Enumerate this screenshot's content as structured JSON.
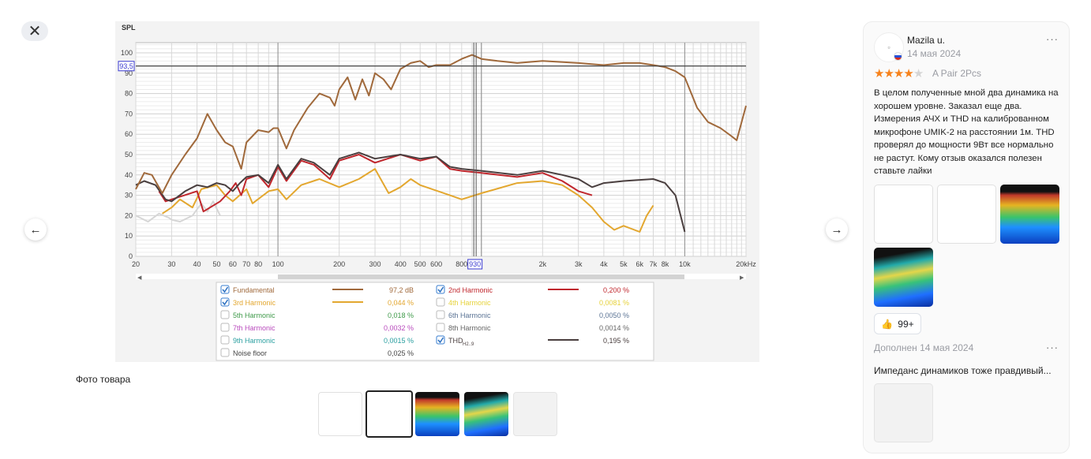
{
  "viewer": {
    "close_icon": "close-icon",
    "prev_icon": "arrow-left-icon",
    "next_icon": "arrow-right-icon",
    "caption": "Фото товара",
    "thumbnail_count": 5,
    "selected_thumbnail": 2
  },
  "chart_data": {
    "type": "line",
    "ylabel": "SPL",
    "ylim": [
      0,
      105
    ],
    "xlim": [
      20,
      20000
    ],
    "xscale": "log",
    "yticks": [
      0,
      10,
      20,
      30,
      40,
      50,
      60,
      70,
      80,
      90,
      100
    ],
    "xticks": [
      {
        "f": 20,
        "l": "20"
      },
      {
        "f": 30,
        "l": "30"
      },
      {
        "f": 40,
        "l": "40"
      },
      {
        "f": 50,
        "l": "50"
      },
      {
        "f": 60,
        "l": "60"
      },
      {
        "f": 70,
        "l": "70"
      },
      {
        "f": 80,
        "l": "80"
      },
      {
        "f": 100,
        "l": "100"
      },
      {
        "f": 200,
        "l": "200"
      },
      {
        "f": 300,
        "l": "300"
      },
      {
        "f": 400,
        "l": "400"
      },
      {
        "f": 500,
        "l": "500"
      },
      {
        "f": 600,
        "l": "600"
      },
      {
        "f": 800,
        "l": "800"
      },
      {
        "f": 2000,
        "l": "2k"
      },
      {
        "f": 3000,
        "l": "3k"
      },
      {
        "f": 4000,
        "l": "4k"
      },
      {
        "f": 5000,
        "l": "5k"
      },
      {
        "f": 6000,
        "l": "6k"
      },
      {
        "f": 7000,
        "l": "7k"
      },
      {
        "f": 8000,
        "l": "8k"
      },
      {
        "f": 10000,
        "l": "10k"
      },
      {
        "f": 20000,
        "l": "20kHz"
      }
    ],
    "cursor": {
      "y": 93.5,
      "y_label": "93,5",
      "x": 930,
      "x_label": "930"
    },
    "series": [
      {
        "name": "Noise floor",
        "color": "#d6d6d6",
        "points": [
          [
            20,
            20
          ],
          [
            23,
            17
          ],
          [
            26,
            21
          ],
          [
            29,
            19
          ],
          [
            30,
            18
          ],
          [
            33,
            17
          ],
          [
            38,
            20
          ],
          [
            42,
            26
          ],
          [
            45,
            22
          ],
          [
            48,
            27
          ],
          [
            52,
            20
          ]
        ]
      },
      {
        "name": "3rd Harmonic",
        "color": "#e3a72f",
        "points": [
          [
            27,
            21
          ],
          [
            30,
            24
          ],
          [
            33,
            28
          ],
          [
            38,
            24
          ],
          [
            42,
            33
          ],
          [
            50,
            35
          ],
          [
            55,
            30
          ],
          [
            60,
            27
          ],
          [
            70,
            33
          ],
          [
            75,
            26
          ],
          [
            90,
            32
          ],
          [
            100,
            33
          ],
          [
            110,
            28
          ],
          [
            130,
            35
          ],
          [
            160,
            38
          ],
          [
            200,
            34
          ],
          [
            250,
            38
          ],
          [
            300,
            43
          ],
          [
            350,
            31
          ],
          [
            400,
            34
          ],
          [
            450,
            38
          ],
          [
            500,
            35
          ],
          [
            700,
            30
          ],
          [
            800,
            28
          ],
          [
            1000,
            31
          ],
          [
            1500,
            36
          ],
          [
            2000,
            37
          ],
          [
            2500,
            35
          ],
          [
            3000,
            30
          ],
          [
            3500,
            24
          ],
          [
            4000,
            17
          ],
          [
            4500,
            13
          ],
          [
            5000,
            15
          ],
          [
            6000,
            12
          ],
          [
            6500,
            20
          ],
          [
            7000,
            25
          ]
        ]
      },
      {
        "name": "2nd Harmonic",
        "color": "#c0272d",
        "points": [
          [
            26,
            32
          ],
          [
            28,
            27
          ],
          [
            40,
            32
          ],
          [
            43,
            22
          ],
          [
            52,
            27
          ],
          [
            58,
            32
          ],
          [
            62,
            36
          ],
          [
            66,
            30
          ],
          [
            70,
            38
          ],
          [
            80,
            40
          ],
          [
            90,
            34
          ],
          [
            100,
            44
          ],
          [
            110,
            37
          ],
          [
            130,
            47
          ],
          [
            150,
            45
          ],
          [
            180,
            38
          ],
          [
            200,
            47
          ],
          [
            250,
            50
          ],
          [
            300,
            46
          ],
          [
            400,
            50
          ],
          [
            500,
            47
          ],
          [
            600,
            49
          ],
          [
            700,
            43
          ],
          [
            800,
            42
          ],
          [
            1000,
            41
          ],
          [
            1500,
            39
          ],
          [
            2000,
            41
          ],
          [
            2500,
            37
          ],
          [
            3000,
            32
          ],
          [
            3500,
            30
          ]
        ]
      },
      {
        "name": "THD H2..9",
        "color": "#4a3f3f",
        "points": [
          [
            20,
            35
          ],
          [
            22,
            37
          ],
          [
            25,
            35
          ],
          [
            28,
            28
          ],
          [
            30,
            27
          ],
          [
            35,
            32
          ],
          [
            40,
            35
          ],
          [
            45,
            34
          ],
          [
            50,
            36
          ],
          [
            55,
            35
          ],
          [
            60,
            32
          ],
          [
            65,
            36
          ],
          [
            70,
            39
          ],
          [
            80,
            40
          ],
          [
            90,
            36
          ],
          [
            100,
            45
          ],
          [
            110,
            38
          ],
          [
            130,
            48
          ],
          [
            150,
            46
          ],
          [
            180,
            40
          ],
          [
            200,
            48
          ],
          [
            250,
            51
          ],
          [
            300,
            48
          ],
          [
            400,
            50
          ],
          [
            500,
            48
          ],
          [
            600,
            49
          ],
          [
            700,
            44
          ],
          [
            800,
            43
          ],
          [
            1000,
            42
          ],
          [
            1500,
            40
          ],
          [
            2000,
            42
          ],
          [
            2500,
            40
          ],
          [
            3000,
            38
          ],
          [
            3500,
            34
          ],
          [
            4000,
            36
          ],
          [
            5000,
            37
          ],
          [
            7000,
            38
          ],
          [
            8000,
            36
          ],
          [
            9000,
            30
          ],
          [
            10000,
            12
          ]
        ]
      },
      {
        "name": "Fundamental",
        "color": "#a0693b",
        "points": [
          [
            20,
            33
          ],
          [
            22,
            41
          ],
          [
            24,
            40
          ],
          [
            27,
            31
          ],
          [
            30,
            40
          ],
          [
            35,
            50
          ],
          [
            40,
            58
          ],
          [
            45,
            70
          ],
          [
            50,
            62
          ],
          [
            55,
            56
          ],
          [
            60,
            54
          ],
          [
            66,
            43
          ],
          [
            70,
            56
          ],
          [
            80,
            62
          ],
          [
            90,
            61
          ],
          [
            95,
            63
          ],
          [
            100,
            63
          ],
          [
            110,
            53
          ],
          [
            120,
            62
          ],
          [
            140,
            73
          ],
          [
            160,
            80
          ],
          [
            180,
            78
          ],
          [
            190,
            74
          ],
          [
            200,
            82
          ],
          [
            220,
            88
          ],
          [
            240,
            77
          ],
          [
            260,
            87
          ],
          [
            280,
            79
          ],
          [
            300,
            90
          ],
          [
            330,
            87
          ],
          [
            360,
            82
          ],
          [
            400,
            92
          ],
          [
            450,
            95
          ],
          [
            500,
            96
          ],
          [
            550,
            93
          ],
          [
            600,
            94
          ],
          [
            700,
            94
          ],
          [
            800,
            97
          ],
          [
            900,
            99
          ],
          [
            1000,
            97
          ],
          [
            1200,
            96
          ],
          [
            1500,
            95
          ],
          [
            2000,
            96
          ],
          [
            3000,
            95
          ],
          [
            4000,
            94
          ],
          [
            5000,
            95
          ],
          [
            6000,
            95
          ],
          [
            7000,
            94
          ],
          [
            8000,
            93
          ],
          [
            9000,
            91
          ],
          [
            10000,
            88
          ],
          [
            11500,
            73
          ],
          [
            13000,
            66
          ],
          [
            15000,
            63
          ],
          [
            17000,
            59
          ],
          [
            18000,
            57
          ],
          [
            20000,
            74
          ]
        ]
      }
    ],
    "legend": [
      {
        "label": "Fundamental",
        "checked": true,
        "value": "97,2 dB",
        "color": "#a0693b",
        "line": true
      },
      {
        "label": "2nd Harmonic",
        "checked": true,
        "value": "0,200 %",
        "color": "#c0272d",
        "line": true
      },
      {
        "label": "3rd Harmonic",
        "checked": true,
        "value": "0,044 %",
        "color": "#e3a72f",
        "line": true
      },
      {
        "label": "4th Harmonic",
        "checked": false,
        "value": "0,0081 %",
        "color": "#e6d23a",
        "line": false
      },
      {
        "label": "5th Harmonic",
        "checked": false,
        "value": "0,018 %",
        "color": "#3f9a4a",
        "line": false
      },
      {
        "label": "6th Harmonic",
        "checked": false,
        "value": "0,0050 %",
        "color": "#5a7394",
        "line": false
      },
      {
        "label": "7th Harmonic",
        "checked": false,
        "value": "0,0032 %",
        "color": "#b94bbd",
        "line": false
      },
      {
        "label": "8th Harmonic",
        "checked": false,
        "value": "0,0014 %",
        "color": "#666666",
        "line": false
      },
      {
        "label": "9th Harmonic",
        "checked": false,
        "value": "0,0015 %",
        "color": "#2a9fa0",
        "line": false
      },
      {
        "label": "THD",
        "sub": "H2..9",
        "checked": true,
        "value": "0,195 %",
        "color": "#4a3f3f",
        "line": true
      },
      {
        "label": "Noise floor",
        "checked": false,
        "value": "0,025 %",
        "color": "#444444",
        "line": false
      }
    ]
  },
  "review": {
    "author": "Mazila u.",
    "date": "14 мая 2024",
    "rating": 4,
    "max_rating": 5,
    "variant": "A Pair 2Pcs",
    "text": "В целом полученные мной два динамика на хорошем уровне. Заказал еще два. Измерения АЧХ и THD  на калиброванном микрофоне UMIK-2 на расстоянии 1м. THD проверял до мощности 9Вт все нормально не растут. Кому отзыв оказался полезен ставьте лайки",
    "likes": "99+",
    "more_icon": "more-dots-icon",
    "like_icon": "thumbs-up-icon",
    "added_label": "Дополнен 14 мая 2024",
    "added_text": "Импеданс динамиков тоже правдивый...",
    "accent": "#f7821b"
  }
}
